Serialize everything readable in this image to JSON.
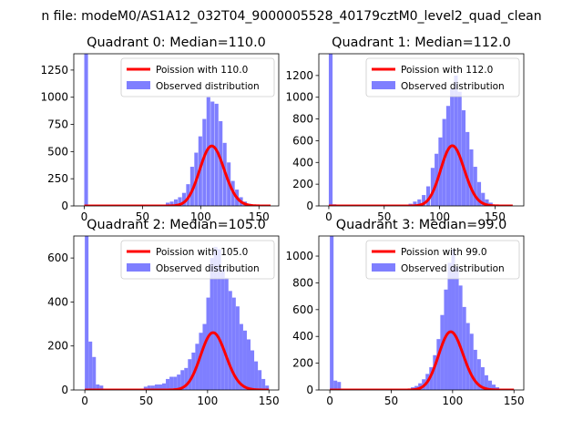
{
  "suptitle": "n file: modeM0/AS1A12_032T04_9000005528_40179cztM0_level2_quad_clean",
  "colors": {
    "observed": "#7f7fff",
    "poisson": "#ff0000"
  },
  "chart_data": [
    {
      "type": "bar",
      "title": "Quadrant 0: Median=110.0",
      "xlim": [
        -9,
        167
      ],
      "ylim": [
        0,
        1400
      ],
      "xticks": [
        0,
        50,
        100,
        150
      ],
      "yticks": [
        0,
        250,
        500,
        750,
        1000,
        1250
      ],
      "legend_position": "upper-right",
      "series": [
        {
          "name": "Observed distribution",
          "type": "histogram",
          "bin_width": 3.2,
          "bins": [
            {
              "x": 0,
              "y": 1400
            },
            {
              "x": 3.2,
              "y": 10
            },
            {
              "x": 70,
              "y": 30
            },
            {
              "x": 73.5,
              "y": 40
            },
            {
              "x": 77,
              "y": 60
            },
            {
              "x": 80.5,
              "y": 80
            },
            {
              "x": 84,
              "y": 120
            },
            {
              "x": 87.5,
              "y": 200
            },
            {
              "x": 91,
              "y": 360
            },
            {
              "x": 94.5,
              "y": 490
            },
            {
              "x": 98,
              "y": 640
            },
            {
              "x": 101.5,
              "y": 800
            },
            {
              "x": 105,
              "y": 1000
            },
            {
              "x": 108.5,
              "y": 960
            },
            {
              "x": 112,
              "y": 940
            },
            {
              "x": 115.5,
              "y": 780
            },
            {
              "x": 119,
              "y": 580
            },
            {
              "x": 122.5,
              "y": 400
            },
            {
              "x": 126,
              "y": 230
            },
            {
              "x": 129.5,
              "y": 150
            },
            {
              "x": 133,
              "y": 80
            },
            {
              "x": 136.5,
              "y": 40
            },
            {
              "x": 140,
              "y": 20
            }
          ]
        },
        {
          "name": "Poission with 110.0",
          "type": "line",
          "mu": 110,
          "scale": 14500,
          "x_range": [
            0,
            160
          ]
        }
      ]
    },
    {
      "type": "bar",
      "title": "Quadrant 1: Median=112.0",
      "xlim": [
        -9,
        176
      ],
      "ylim": [
        0,
        1400
      ],
      "xticks": [
        0,
        50,
        100,
        150
      ],
      "yticks": [
        0,
        200,
        400,
        600,
        800,
        1000,
        1200
      ],
      "legend_position": "upper-right",
      "series": [
        {
          "name": "Observed distribution",
          "type": "histogram",
          "bin_width": 3.4,
          "bins": [
            {
              "x": 0,
              "y": 1400
            },
            {
              "x": 3.4,
              "y": 15
            },
            {
              "x": 72,
              "y": 20
            },
            {
              "x": 76,
              "y": 40
            },
            {
              "x": 80,
              "y": 60
            },
            {
              "x": 84,
              "y": 100
            },
            {
              "x": 88,
              "y": 180
            },
            {
              "x": 92,
              "y": 350
            },
            {
              "x": 95.5,
              "y": 480
            },
            {
              "x": 99,
              "y": 630
            },
            {
              "x": 102.5,
              "y": 800
            },
            {
              "x": 106,
              "y": 920
            },
            {
              "x": 109.5,
              "y": 1080
            },
            {
              "x": 113,
              "y": 1200
            },
            {
              "x": 116.5,
              "y": 1050
            },
            {
              "x": 120,
              "y": 880
            },
            {
              "x": 123.5,
              "y": 680
            },
            {
              "x": 127,
              "y": 520
            },
            {
              "x": 130.5,
              "y": 360
            },
            {
              "x": 134,
              "y": 220
            },
            {
              "x": 137.5,
              "y": 120
            },
            {
              "x": 141,
              "y": 60
            },
            {
              "x": 144.5,
              "y": 30
            }
          ]
        },
        {
          "name": "Poission with 112.0",
          "type": "line",
          "mu": 112,
          "scale": 14700,
          "x_range": [
            0,
            166
          ]
        }
      ]
    },
    {
      "type": "bar",
      "title": "Quadrant 2: Median=105.0",
      "xlim": [
        -9,
        158
      ],
      "ylim": [
        0,
        700
      ],
      "xticks": [
        0,
        50,
        100,
        150
      ],
      "yticks": [
        0,
        200,
        400,
        600
      ],
      "legend_position": "upper-right",
      "series": [
        {
          "name": "Observed distribution",
          "type": "histogram",
          "bin_width": 3.0,
          "bins": [
            {
              "x": 0,
              "y": 700
            },
            {
              "x": 3,
              "y": 220
            },
            {
              "x": 6,
              "y": 150
            },
            {
              "x": 9,
              "y": 25
            },
            {
              "x": 12,
              "y": 20
            },
            {
              "x": 48,
              "y": 15
            },
            {
              "x": 51,
              "y": 20
            },
            {
              "x": 54,
              "y": 20
            },
            {
              "x": 57,
              "y": 25
            },
            {
              "x": 60,
              "y": 25
            },
            {
              "x": 63,
              "y": 30
            },
            {
              "x": 66,
              "y": 50
            },
            {
              "x": 69,
              "y": 60
            },
            {
              "x": 72,
              "y": 60
            },
            {
              "x": 75,
              "y": 70
            },
            {
              "x": 78,
              "y": 90
            },
            {
              "x": 81,
              "y": 100
            },
            {
              "x": 84,
              "y": 140
            },
            {
              "x": 87,
              "y": 170
            },
            {
              "x": 90,
              "y": 210
            },
            {
              "x": 93,
              "y": 260
            },
            {
              "x": 96,
              "y": 300
            },
            {
              "x": 99,
              "y": 420
            },
            {
              "x": 102,
              "y": 600
            },
            {
              "x": 105,
              "y": 650
            },
            {
              "x": 108,
              "y": 640
            },
            {
              "x": 111,
              "y": 550
            },
            {
              "x": 114,
              "y": 510
            },
            {
              "x": 117,
              "y": 450
            },
            {
              "x": 120,
              "y": 420
            },
            {
              "x": 123,
              "y": 380
            },
            {
              "x": 126,
              "y": 300
            },
            {
              "x": 129,
              "y": 270
            },
            {
              "x": 132,
              "y": 230
            },
            {
              "x": 135,
              "y": 180
            },
            {
              "x": 138,
              "y": 130
            },
            {
              "x": 141,
              "y": 90
            },
            {
              "x": 144,
              "y": 50
            },
            {
              "x": 147,
              "y": 20
            }
          ]
        },
        {
          "name": "Poission with 105.0",
          "type": "line",
          "mu": 105,
          "scale": 6700,
          "x_range": [
            0,
            150
          ]
        }
      ]
    },
    {
      "type": "bar",
      "title": "Quadrant 3: Median=99.0",
      "xlim": [
        -9,
        158
      ],
      "ylim": [
        0,
        1150
      ],
      "xticks": [
        0,
        50,
        100,
        150
      ],
      "yticks": [
        0,
        200,
        400,
        600,
        800,
        1000
      ],
      "legend_position": "upper-right",
      "series": [
        {
          "name": "Observed distribution",
          "type": "histogram",
          "bin_width": 3.0,
          "bins": [
            {
              "x": 0,
              "y": 1150
            },
            {
              "x": 3,
              "y": 70
            },
            {
              "x": 6,
              "y": 60
            },
            {
              "x": 66,
              "y": 20
            },
            {
              "x": 69,
              "y": 30
            },
            {
              "x": 72,
              "y": 50
            },
            {
              "x": 75,
              "y": 80
            },
            {
              "x": 78,
              "y": 120
            },
            {
              "x": 81,
              "y": 170
            },
            {
              "x": 84,
              "y": 260
            },
            {
              "x": 87,
              "y": 380
            },
            {
              "x": 90,
              "y": 560
            },
            {
              "x": 93,
              "y": 750
            },
            {
              "x": 96,
              "y": 950
            },
            {
              "x": 99,
              "y": 1050
            },
            {
              "x": 102,
              "y": 920
            },
            {
              "x": 105,
              "y": 780
            },
            {
              "x": 108,
              "y": 620
            },
            {
              "x": 111,
              "y": 500
            },
            {
              "x": 114,
              "y": 420
            },
            {
              "x": 117,
              "y": 300
            },
            {
              "x": 120,
              "y": 230
            },
            {
              "x": 123,
              "y": 170
            },
            {
              "x": 126,
              "y": 110
            },
            {
              "x": 129,
              "y": 70
            },
            {
              "x": 132,
              "y": 40
            },
            {
              "x": 135,
              "y": 20
            }
          ]
        },
        {
          "name": "Poission with 99.0",
          "type": "line",
          "mu": 99,
          "scale": 10850,
          "x_range": [
            0,
            150
          ]
        }
      ]
    }
  ]
}
